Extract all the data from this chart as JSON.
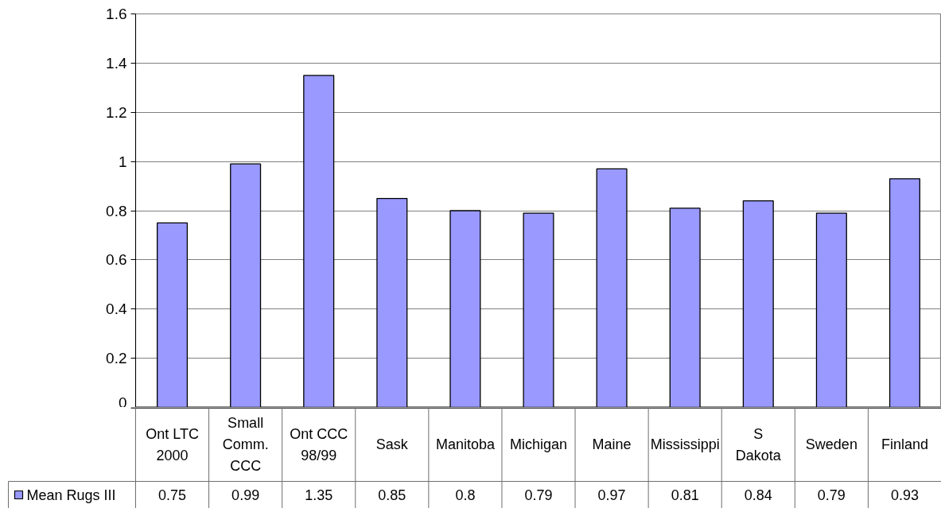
{
  "chart_data": {
    "type": "bar",
    "categories": [
      "Ont LTC 2000",
      "Small Comm. CCC",
      "Ont CCC 98/99",
      "Sask",
      "Manitoba",
      "Michigan",
      "Maine",
      "Mississippi",
      "S Dakota",
      "Sweden",
      "Finland"
    ],
    "series": [
      {
        "name": "Mean Rugs III",
        "color": "#9999ff",
        "values": [
          0.75,
          0.99,
          1.35,
          0.85,
          0.8,
          0.79,
          0.97,
          0.81,
          0.84,
          0.79,
          0.93
        ]
      }
    ],
    "ylim": [
      0,
      1.6
    ],
    "yticks": [
      0,
      0.2,
      0.4,
      0.6,
      0.8,
      1,
      1.2,
      1.4,
      1.6
    ],
    "grid": "y",
    "legend": "bottom left",
    "data_labels": true
  }
}
